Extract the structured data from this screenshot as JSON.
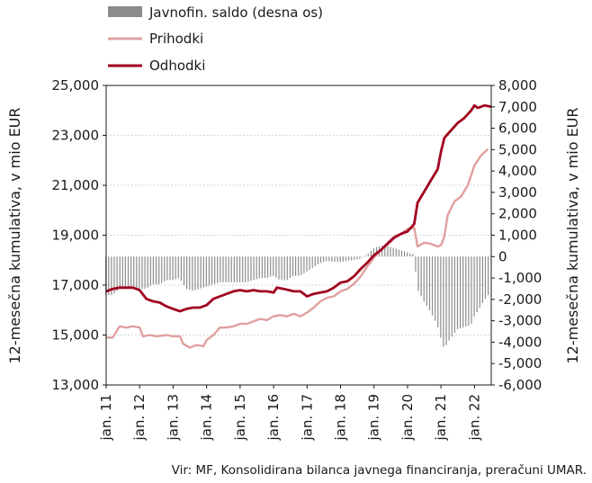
{
  "chart_data": {
    "type": "line",
    "legend": [
      "Javnofin. saldo (desna os)",
      "Prihodki",
      "Odhodki"
    ],
    "ylabel_left": "12-mesečna kumulativa, v mio EUR",
    "ylabel_right": "12-mesečna kumulativa, v mio EUR",
    "yticks_left": [
      "13,000",
      "15,000",
      "17,000",
      "19,000",
      "21,000",
      "23,000",
      "25,000"
    ],
    "yticks_right": [
      "-6,000",
      "-5,000",
      "-4,000",
      "-3,000",
      "-2,000",
      "-1,000",
      "0",
      "1,000",
      "2,000",
      "3,000",
      "4,000",
      "5,000",
      "6,000",
      "7,000",
      "8,000"
    ],
    "ylim_left": [
      13000,
      25000
    ],
    "ylim_right": [
      -6000,
      8000
    ],
    "xlim": [
      2011.0,
      2022.5
    ],
    "xtick_labels": [
      "jan. 11",
      "jan. 12",
      "jan. 13",
      "jan. 14",
      "jan. 15",
      "jan. 16",
      "jan. 17",
      "jan. 18",
      "jan. 19",
      "jan. 20",
      "jan. 21",
      "jan. 22"
    ],
    "xtick_values": [
      2011,
      2012,
      2013,
      2014,
      2015,
      2016,
      2017,
      2018,
      2019,
      2020,
      2021,
      2022
    ],
    "source": "Vir: MF, Konsolidirana bilanca javnega financiranja, preračuni UMAR.",
    "colors": {
      "saldo": "#8c8c8c",
      "prihodki": "#e0a0a0",
      "odhodki": "#a00020"
    },
    "series": [
      {
        "name": "Prihodki",
        "axis": "left",
        "points": [
          [
            2011.0,
            14900
          ],
          [
            2011.2,
            14900
          ],
          [
            2011.4,
            15350
          ],
          [
            2011.6,
            15300
          ],
          [
            2011.8,
            15350
          ],
          [
            2012.0,
            15300
          ],
          [
            2012.1,
            14950
          ],
          [
            2012.3,
            15000
          ],
          [
            2012.5,
            14950
          ],
          [
            2012.8,
            15000
          ],
          [
            2013.0,
            14950
          ],
          [
            2013.2,
            14950
          ],
          [
            2013.3,
            14650
          ],
          [
            2013.5,
            14500
          ],
          [
            2013.7,
            14600
          ],
          [
            2013.9,
            14550
          ],
          [
            2014.0,
            14800
          ],
          [
            2014.2,
            15000
          ],
          [
            2014.4,
            15300
          ],
          [
            2014.6,
            15300
          ],
          [
            2014.8,
            15350
          ],
          [
            2015.0,
            15450
          ],
          [
            2015.2,
            15450
          ],
          [
            2015.4,
            15550
          ],
          [
            2015.6,
            15650
          ],
          [
            2015.8,
            15600
          ],
          [
            2016.0,
            15750
          ],
          [
            2016.2,
            15800
          ],
          [
            2016.4,
            15750
          ],
          [
            2016.6,
            15850
          ],
          [
            2016.8,
            15750
          ],
          [
            2017.0,
            15900
          ],
          [
            2017.2,
            16100
          ],
          [
            2017.4,
            16350
          ],
          [
            2017.6,
            16500
          ],
          [
            2017.8,
            16550
          ],
          [
            2018.0,
            16750
          ],
          [
            2018.2,
            16850
          ],
          [
            2018.4,
            17050
          ],
          [
            2018.6,
            17350
          ],
          [
            2018.8,
            17750
          ],
          [
            2019.0,
            18100
          ],
          [
            2019.2,
            18400
          ],
          [
            2019.4,
            18700
          ],
          [
            2019.6,
            18950
          ],
          [
            2019.8,
            19050
          ],
          [
            2020.0,
            19250
          ],
          [
            2020.2,
            19300
          ],
          [
            2020.3,
            18550
          ],
          [
            2020.5,
            18700
          ],
          [
            2020.7,
            18650
          ],
          [
            2020.9,
            18550
          ],
          [
            2021.0,
            18600
          ],
          [
            2021.1,
            18950
          ],
          [
            2021.2,
            19800
          ],
          [
            2021.4,
            20350
          ],
          [
            2021.6,
            20550
          ],
          [
            2021.8,
            21000
          ],
          [
            2022.0,
            21800
          ],
          [
            2022.2,
            22200
          ],
          [
            2022.4,
            22450
          ]
        ]
      },
      {
        "name": "Odhodki",
        "axis": "left",
        "points": [
          [
            2011.0,
            16750
          ],
          [
            2011.2,
            16850
          ],
          [
            2011.4,
            16900
          ],
          [
            2011.6,
            16900
          ],
          [
            2011.8,
            16900
          ],
          [
            2012.0,
            16800
          ],
          [
            2012.2,
            16450
          ],
          [
            2012.4,
            16350
          ],
          [
            2012.6,
            16300
          ],
          [
            2012.8,
            16150
          ],
          [
            2013.0,
            16050
          ],
          [
            2013.2,
            15950
          ],
          [
            2013.4,
            16050
          ],
          [
            2013.6,
            16100
          ],
          [
            2013.8,
            16100
          ],
          [
            2014.0,
            16200
          ],
          [
            2014.2,
            16450
          ],
          [
            2014.4,
            16550
          ],
          [
            2014.6,
            16650
          ],
          [
            2014.8,
            16750
          ],
          [
            2015.0,
            16800
          ],
          [
            2015.2,
            16750
          ],
          [
            2015.4,
            16800
          ],
          [
            2015.6,
            16750
          ],
          [
            2015.8,
            16750
          ],
          [
            2016.0,
            16700
          ],
          [
            2016.1,
            16900
          ],
          [
            2016.3,
            16850
          ],
          [
            2016.6,
            16750
          ],
          [
            2016.8,
            16750
          ],
          [
            2017.0,
            16550
          ],
          [
            2017.2,
            16650
          ],
          [
            2017.4,
            16700
          ],
          [
            2017.6,
            16750
          ],
          [
            2017.8,
            16900
          ],
          [
            2018.0,
            17100
          ],
          [
            2018.2,
            17150
          ],
          [
            2018.4,
            17350
          ],
          [
            2018.6,
            17650
          ],
          [
            2018.8,
            17900
          ],
          [
            2019.0,
            18200
          ],
          [
            2019.2,
            18400
          ],
          [
            2019.4,
            18650
          ],
          [
            2019.6,
            18900
          ],
          [
            2019.8,
            19050
          ],
          [
            2020.0,
            19150
          ],
          [
            2020.2,
            19450
          ],
          [
            2020.3,
            20300
          ],
          [
            2020.5,
            20750
          ],
          [
            2020.7,
            21200
          ],
          [
            2020.9,
            21650
          ],
          [
            2021.0,
            22350
          ],
          [
            2021.1,
            22900
          ],
          [
            2021.3,
            23200
          ],
          [
            2021.5,
            23500
          ],
          [
            2021.7,
            23700
          ],
          [
            2021.9,
            24000
          ],
          [
            2022.0,
            24200
          ],
          [
            2022.1,
            24100
          ],
          [
            2022.3,
            24200
          ],
          [
            2022.5,
            24150
          ]
        ]
      },
      {
        "name": "Javnofin. saldo (desna os)",
        "axis": "right",
        "type": "bar",
        "points": [
          [
            2011.0,
            -1800
          ],
          [
            2011.2,
            -1800
          ],
          [
            2011.4,
            -1500
          ],
          [
            2011.6,
            -1500
          ],
          [
            2011.8,
            -1500
          ],
          [
            2012.0,
            -1500
          ],
          [
            2012.2,
            -1500
          ],
          [
            2012.4,
            -1300
          ],
          [
            2012.6,
            -1300
          ],
          [
            2012.8,
            -1100
          ],
          [
            2013.0,
            -1100
          ],
          [
            2013.2,
            -1000
          ],
          [
            2013.4,
            -1500
          ],
          [
            2013.6,
            -1600
          ],
          [
            2013.8,
            -1500
          ],
          [
            2014.0,
            -1400
          ],
          [
            2014.2,
            -1300
          ],
          [
            2014.4,
            -1200
          ],
          [
            2014.6,
            -1200
          ],
          [
            2014.8,
            -1200
          ],
          [
            2015.0,
            -1200
          ],
          [
            2015.2,
            -1200
          ],
          [
            2015.4,
            -1100
          ],
          [
            2015.6,
            -1000
          ],
          [
            2015.8,
            -1000
          ],
          [
            2016.0,
            -900
          ],
          [
            2016.2,
            -1100
          ],
          [
            2016.4,
            -1100
          ],
          [
            2016.6,
            -900
          ],
          [
            2016.8,
            -900
          ],
          [
            2017.0,
            -700
          ],
          [
            2017.2,
            -500
          ],
          [
            2017.4,
            -300
          ],
          [
            2017.6,
            -200
          ],
          [
            2017.8,
            -250
          ],
          [
            2018.0,
            -250
          ],
          [
            2018.2,
            -200
          ],
          [
            2018.4,
            -150
          ],
          [
            2018.6,
            -100
          ],
          [
            2018.8,
            100
          ],
          [
            2019.0,
            400
          ],
          [
            2019.2,
            500
          ],
          [
            2019.4,
            500
          ],
          [
            2019.6,
            400
          ],
          [
            2019.8,
            300
          ],
          [
            2020.0,
            200
          ],
          [
            2020.2,
            100
          ],
          [
            2020.3,
            -1500
          ],
          [
            2020.5,
            -2100
          ],
          [
            2020.7,
            -2600
          ],
          [
            2020.9,
            -3200
          ],
          [
            2021.0,
            -3800
          ],
          [
            2021.1,
            -4300
          ],
          [
            2021.3,
            -3800
          ],
          [
            2021.5,
            -3400
          ],
          [
            2021.7,
            -3300
          ],
          [
            2021.9,
            -3200
          ],
          [
            2022.0,
            -2800
          ],
          [
            2022.2,
            -2300
          ],
          [
            2022.4,
            -1800
          ]
        ]
      }
    ]
  }
}
